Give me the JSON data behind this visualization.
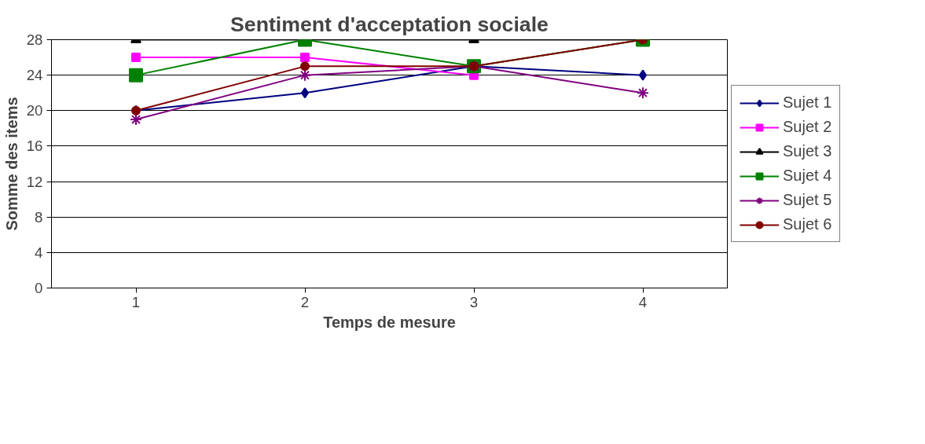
{
  "chart_data": {
    "type": "line",
    "title": "Sentiment d'acceptation sociale",
    "xlabel": "Temps de mesure",
    "ylabel": "Somme des items",
    "categories": [
      "1",
      "2",
      "3",
      "4"
    ],
    "series": [
      {
        "name": "Sujet 1",
        "color": "#000080",
        "marker": "diamond",
        "values": [
          20,
          22,
          25,
          24
        ]
      },
      {
        "name": "Sujet 2",
        "color": "#ff00ff",
        "marker": "square",
        "values": [
          26,
          26,
          24,
          null
        ]
      },
      {
        "name": "Sujet 3",
        "color": "#000000",
        "marker": "triangle",
        "values": [
          28,
          28,
          28,
          28
        ]
      },
      {
        "name": "Sujet 4",
        "color": "#008000",
        "marker": "square",
        "values": [
          24,
          28,
          25,
          28
        ]
      },
      {
        "name": "Sujet 5",
        "color": "#800080",
        "marker": "cross",
        "values": [
          19,
          24,
          25,
          22
        ]
      },
      {
        "name": "Sujet 6",
        "color": "#800000",
        "marker": "circle",
        "values": [
          20,
          25,
          25,
          28
        ]
      }
    ],
    "ylim": [
      0,
      28
    ],
    "yticks": [
      0,
      4,
      8,
      12,
      16,
      20,
      24,
      28
    ],
    "grid": "y",
    "legend": "right"
  }
}
